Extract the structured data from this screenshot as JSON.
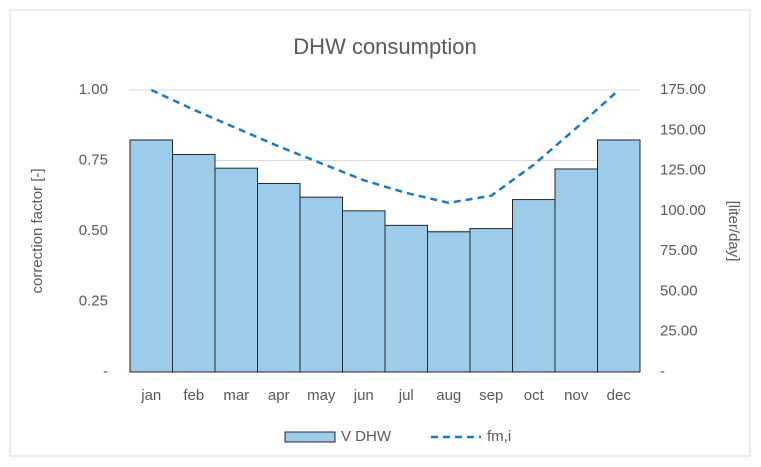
{
  "chart_data": {
    "type": "bar_line",
    "title": "DHW consumption",
    "y_label": "correction factor [-]",
    "y2_label": "[liter/day]",
    "categories": [
      "jan",
      "feb",
      "mar",
      "apr",
      "may",
      "jun",
      "jul",
      "aug",
      "sep",
      "oct",
      "nov",
      "dec"
    ],
    "series": [
      {
        "name": "V DHW",
        "type": "bar",
        "axis": "y2",
        "color": "#9dcbea",
        "values": [
          144,
          135,
          126.5,
          117,
          108.5,
          100,
          91,
          87,
          89,
          107,
          126,
          144
        ]
      },
      {
        "name": "fm,i",
        "type": "line",
        "axis": "y",
        "color": "#1a7bc4",
        "values": [
          1.0,
          0.93,
          0.865,
          0.8,
          0.74,
          0.68,
          0.635,
          0.6,
          0.625,
          0.735,
          0.865,
          1.0
        ]
      }
    ],
    "ylim": [
      0,
      1
    ],
    "yticks": [
      {
        "value": 0,
        "label": "-"
      },
      0.25,
      {
        "value": 0.5,
        "label": "0.50"
      },
      0.75,
      {
        "value": 1,
        "label": "1.00"
      }
    ],
    "y2lim": [
      0,
      175
    ],
    "y2ticks": [
      {
        "value": 0,
        "label": "-"
      },
      {
        "value": 25,
        "label": "25.00"
      },
      {
        "value": 50,
        "label": "50.00"
      },
      {
        "value": 75,
        "label": "75.00"
      },
      {
        "value": 100,
        "label": "100.00"
      },
      {
        "value": 125,
        "label": "125.00"
      },
      {
        "value": 150,
        "label": "150.00"
      },
      {
        "value": 175,
        "label": "175.00"
      }
    ],
    "grid": true
  }
}
